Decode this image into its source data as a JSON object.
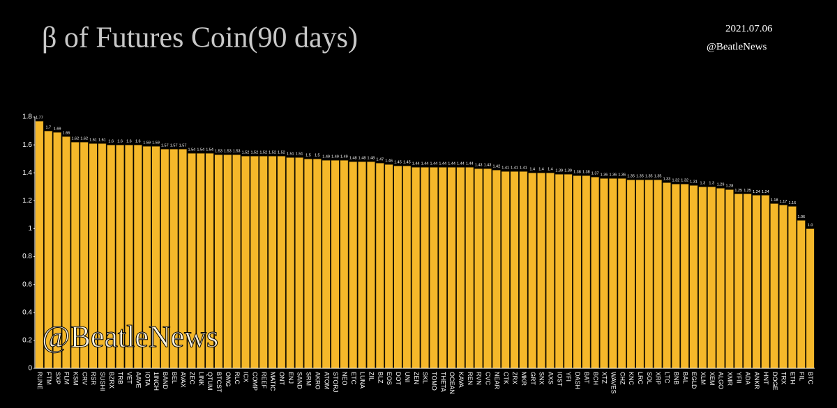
{
  "chart_data": {
    "type": "bar",
    "title": "β of Futures Coin(90 days)",
    "annotations": [
      "2021.07.06",
      "@BeatleNews",
      "@BeatleNews"
    ],
    "categories": [
      "RUNE",
      "FTM",
      "SXP",
      "FLM",
      "KSM",
      "CRV",
      "RSR",
      "SUSHI",
      "BZRX",
      "TRB",
      "VET",
      "AAVE",
      "IOTA",
      "1INCH",
      "BAND",
      "BEL",
      "AVAX",
      "ZEC",
      "LINK",
      "QTUM",
      "BTCST",
      "OMG",
      "RLC",
      "ICX",
      "COMP",
      "REEF",
      "MATIC",
      "ONT",
      "ENJ",
      "SAND",
      "SRM",
      "AKRO",
      "ATOM",
      "STORJ",
      "NEO",
      "ETC",
      "LUNA",
      "ZIL",
      "BLZ",
      "EOS",
      "DOT",
      "UNI",
      "ZEN",
      "SKL",
      "TOMO",
      "THETA",
      "OCEAN",
      "KAVA",
      "REN",
      "RVN",
      "CVC",
      "NEAR",
      "CTK",
      "ZRX",
      "MKR",
      "GRT",
      "SNX",
      "AXS",
      "IOST",
      "YFI",
      "DASH",
      "BAT",
      "BCH",
      "XTZ",
      "WAVES",
      "CHZ",
      "KNC",
      "LRC",
      "SOL",
      "XRP",
      "LTC",
      "BNB",
      "BAL",
      "EGLD",
      "XLM",
      "XEM",
      "ALGO",
      "XMR",
      "YFII",
      "ADA",
      "ANKR",
      "HNT",
      "DOGE",
      "TRX",
      "ETH",
      "FIL",
      "BTC"
    ],
    "values": [
      1.77,
      1.7,
      1.69,
      1.66,
      1.62,
      1.62,
      1.61,
      1.61,
      1.6,
      1.6,
      1.6,
      1.6,
      1.59,
      1.59,
      1.57,
      1.57,
      1.57,
      1.54,
      1.54,
      1.54,
      1.53,
      1.53,
      1.53,
      1.52,
      1.52,
      1.52,
      1.52,
      1.52,
      1.51,
      1.51,
      1.5,
      1.5,
      1.49,
      1.49,
      1.49,
      1.48,
      1.48,
      1.48,
      1.47,
      1.46,
      1.45,
      1.45,
      1.44,
      1.44,
      1.44,
      1.44,
      1.44,
      1.44,
      1.44,
      1.43,
      1.43,
      1.42,
      1.41,
      1.41,
      1.41,
      1.4,
      1.4,
      1.4,
      1.39,
      1.39,
      1.38,
      1.38,
      1.37,
      1.36,
      1.36,
      1.36,
      1.35,
      1.35,
      1.35,
      1.35,
      1.33,
      1.32,
      1.32,
      1.31,
      1.3,
      1.3,
      1.29,
      1.28,
      1.25,
      1.25,
      1.24,
      1.24,
      1.18,
      1.17,
      1.16,
      1.06,
      1
    ],
    "value_labels": [
      "1.77",
      "1.7",
      "1.69",
      "1.66",
      "1.62",
      "1.62",
      "1.61",
      "1.61",
      "1.6",
      "1.6",
      "1.6",
      "1.6",
      "1.59",
      "1.59",
      "1.57",
      "1.57",
      "1.57",
      "1.54",
      "1.54",
      "1.54",
      "1.53",
      "1.53",
      "1.53",
      "1.52",
      "1.52",
      "1.52",
      "1.52",
      "1.52",
      "1.51",
      "1.51",
      "1.5",
      "1.5",
      "1.49",
      "1.49",
      "1.49",
      "1.48",
      "1.48",
      "1.48",
      "1.47",
      "1.46",
      "1.45",
      "1.45",
      "1.44",
      "1.44",
      "1.44",
      "1.44",
      "1.44",
      "1.44",
      "1.44",
      "1.43",
      "1.43",
      "1.42",
      "1.41",
      "1.41",
      "1.41",
      "1.4",
      "1.4",
      "1.4",
      "1.39",
      "1.39",
      "1.38",
      "1.38",
      "1.37",
      "1.36",
      "1.36",
      "1.36",
      "1.35",
      "1.35",
      "1.35",
      "1.35",
      "1.33",
      "1.32",
      "1.32",
      "1.31",
      "1.3",
      "1.3",
      "1.29",
      "1.28",
      "1.25",
      "1.25",
      "1.24",
      "1.24",
      "1.18",
      "1.17",
      "1.16",
      "1.06",
      "1.0"
    ],
    "color": "#f5b82a",
    "ylim": [
      0,
      1.8
    ],
    "yticks": [
      0,
      0.2,
      0.4,
      0.6,
      0.8,
      1,
      1.2,
      1.4,
      1.6,
      1.8
    ]
  }
}
